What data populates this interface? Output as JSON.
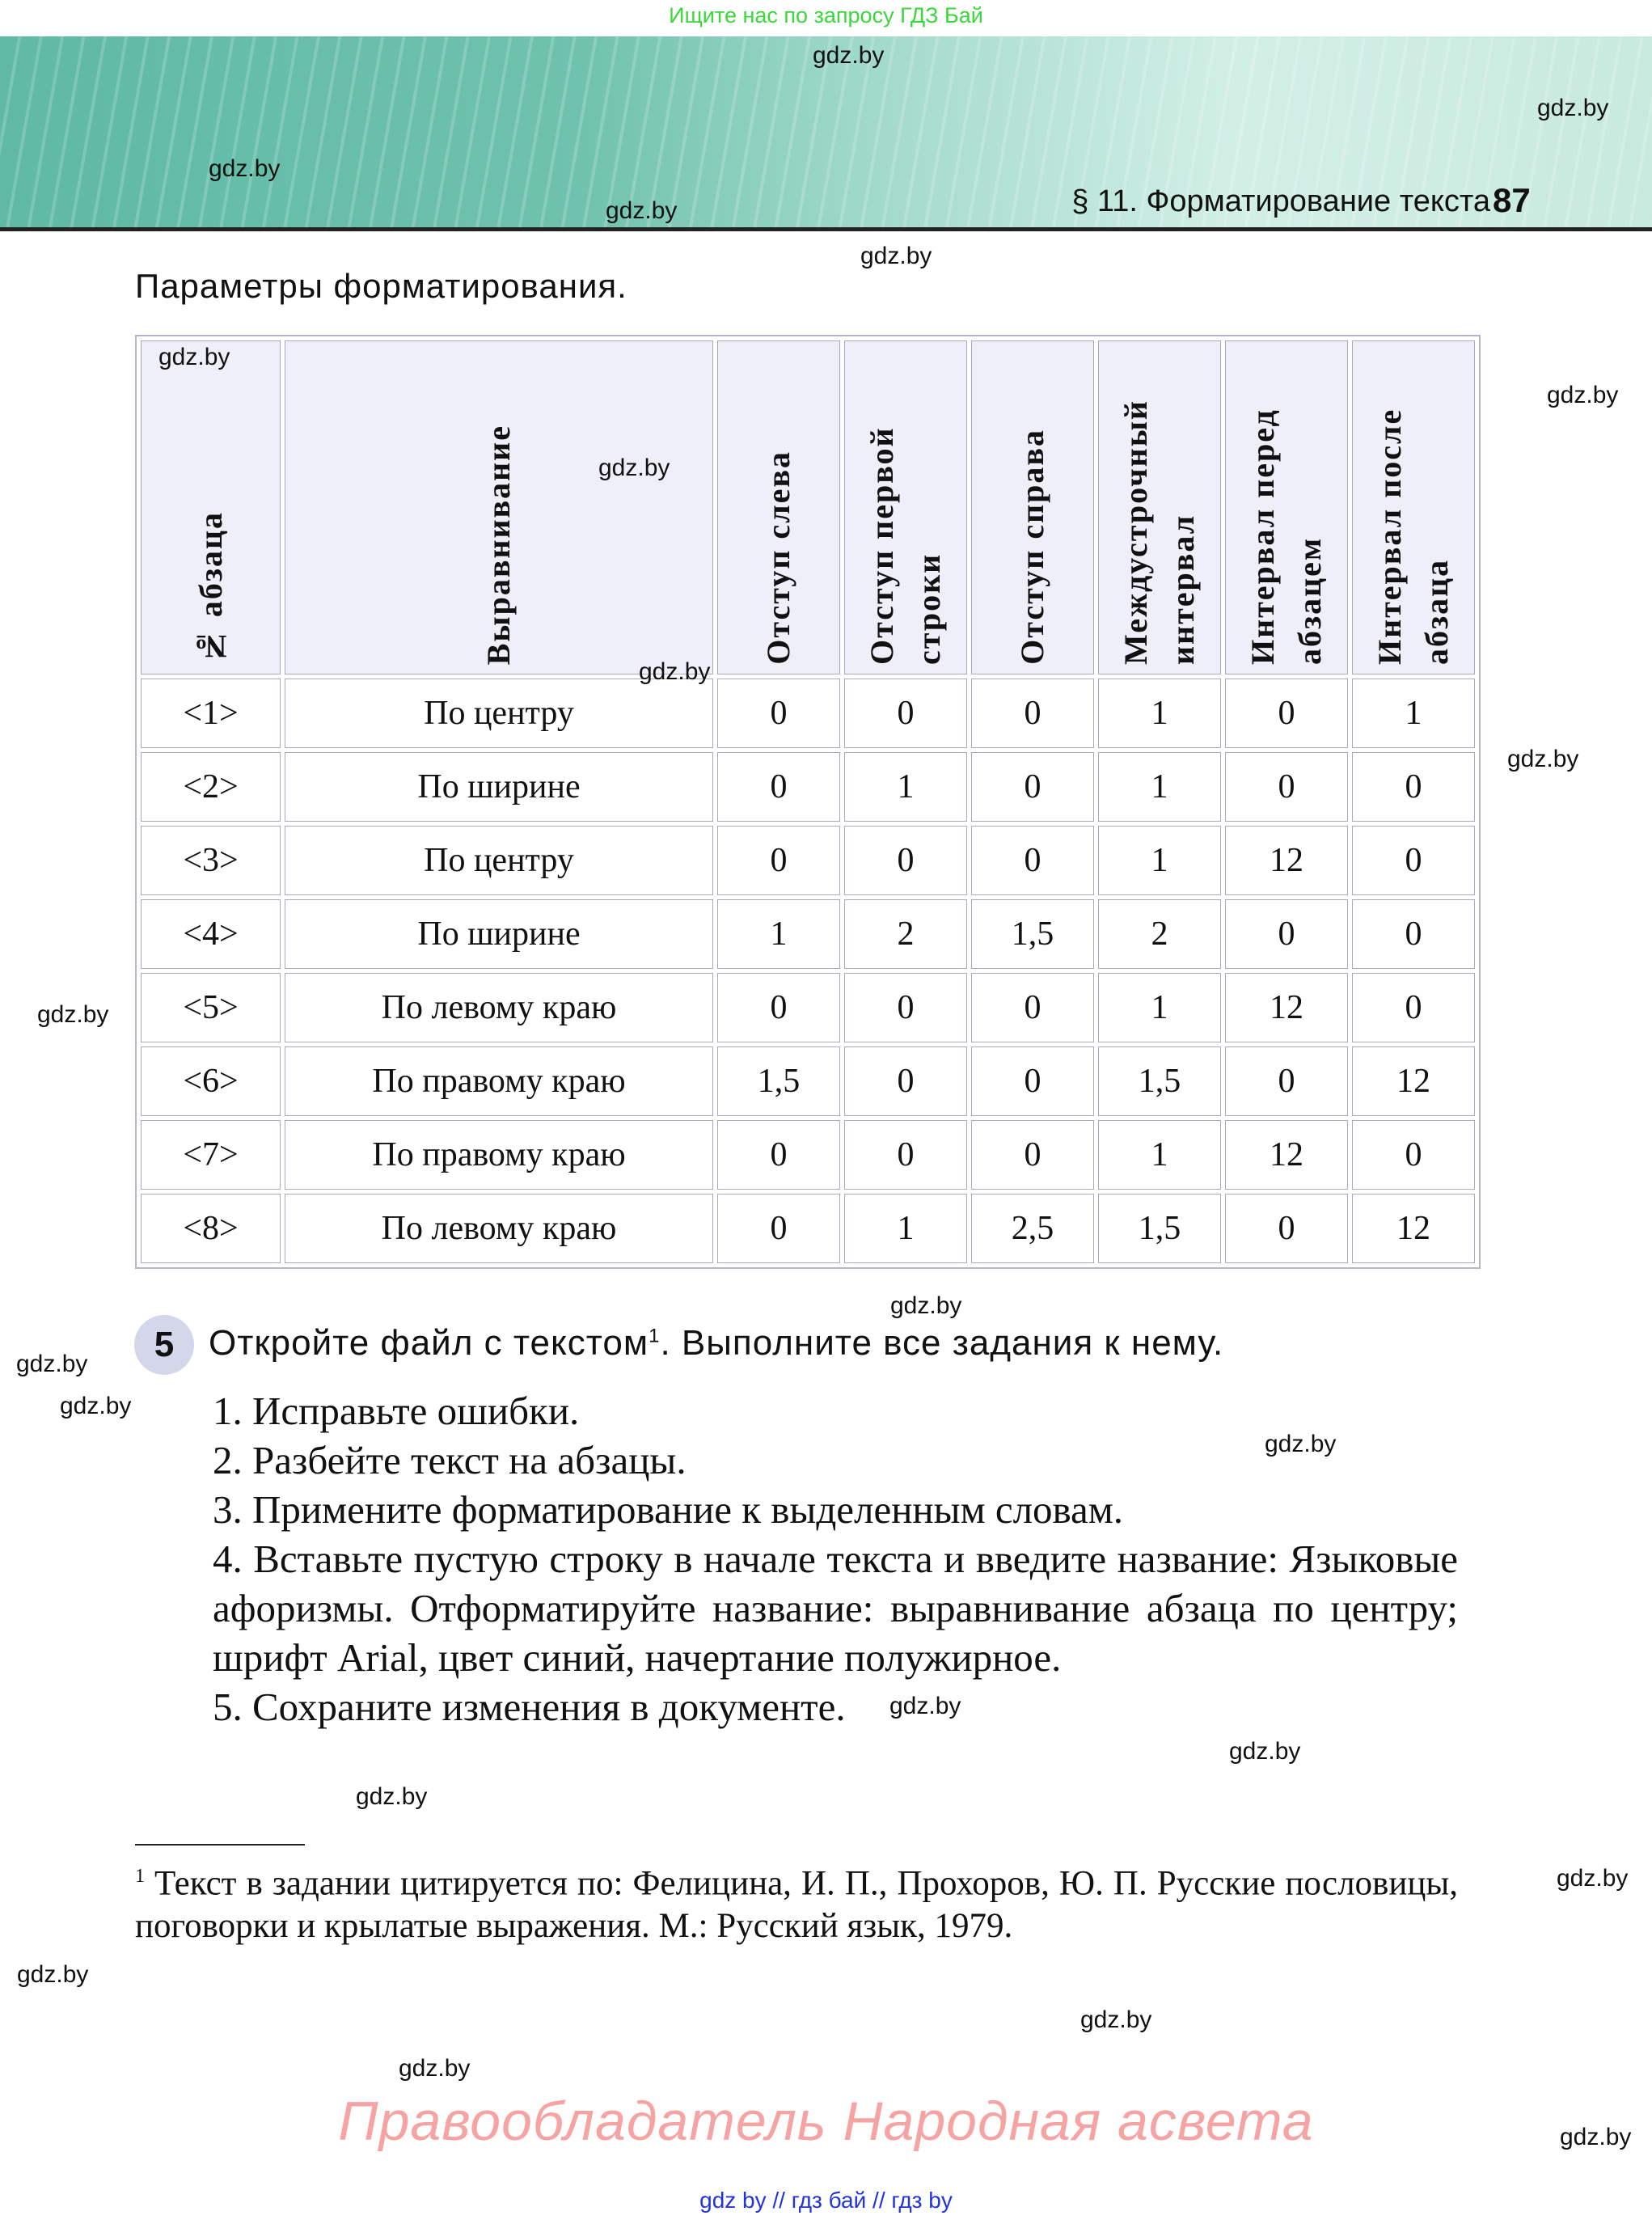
{
  "top_note": "Ищите нас по запросу ГДЗ Бай",
  "header": {
    "section_title": "§ 11. Форматирование текста",
    "page_number": "87",
    "band_color": "#6fc2ad"
  },
  "params_title": "Параметры форматирования.",
  "table": {
    "header_bg": "#efeffa",
    "columns": [
      "№ абзаца",
      "Выравнивание",
      "Отступ слева",
      "Отступ первой строки",
      "Отступ справа",
      "Междустрочный интервал",
      "Интервал перед абзацем",
      "Интервал после абзаца"
    ],
    "rows": [
      [
        "<1>",
        "По центру",
        "0",
        "0",
        "0",
        "1",
        "0",
        "1"
      ],
      [
        "<2>",
        "По ширине",
        "0",
        "1",
        "0",
        "1",
        "0",
        "0"
      ],
      [
        "<3>",
        "По центру",
        "0",
        "0",
        "0",
        "1",
        "12",
        "0"
      ],
      [
        "<4>",
        "По ширине",
        "1",
        "2",
        "1,5",
        "2",
        "0",
        "0"
      ],
      [
        "<5>",
        "По левому краю",
        "0",
        "0",
        "0",
        "1",
        "12",
        "0"
      ],
      [
        "<6>",
        "По правому краю",
        "1,5",
        "0",
        "0",
        "1,5",
        "0",
        "12"
      ],
      [
        "<7>",
        "По правому краю",
        "0",
        "0",
        "0",
        "1",
        "12",
        "0"
      ],
      [
        "<8>",
        "По левому краю",
        "0",
        "1",
        "2,5",
        "1,5",
        "0",
        "12"
      ]
    ]
  },
  "task": {
    "number": "5",
    "text": "Откройте файл с текстом",
    "footnote_ref": "1",
    "text_after": ". Выполните все задания к нему.",
    "items": [
      "1. Исправьте ошибки.",
      "2. Разбейте текст на абзацы.",
      "3. Примените форматирование к выделенным словам.",
      "4. Вставьте пустую строку в начале текста и введите название: Языковые афоризмы. Отформатируйте название: выравнивание абзаца по центру; шрифт Arial, цвет синий, начертание полужирное.",
      "5. Сохраните изменения в документе."
    ]
  },
  "footnote": {
    "mark": "1",
    "text": " Текст в задании цитируется по: Фелицина, И. П., Прохоров, Ю. П. Русские пословицы, поговорки и крылатые выражения. М.: Русский язык, 1979."
  },
  "rights": "Правообладатель  Народная асвета",
  "bottom_links": "gdz by  //  гдз бай  //  гдз by",
  "watermarks": [
    "gdz.by",
    "gdz.by",
    "gdz.by",
    "gdz.by",
    "gdz.by",
    "gdz.by",
    "gdz.by",
    "gdz.by",
    "gdz.by",
    "gdz.by",
    "gdz.by",
    "gdz.by",
    "gdz.by",
    "gdz.by",
    "gdz.by",
    "gdz.by",
    "gdz.by",
    "gdz.by",
    "gdz.by",
    "gdz.by",
    "gdz.by",
    "gdz.by",
    "gdz.by"
  ]
}
